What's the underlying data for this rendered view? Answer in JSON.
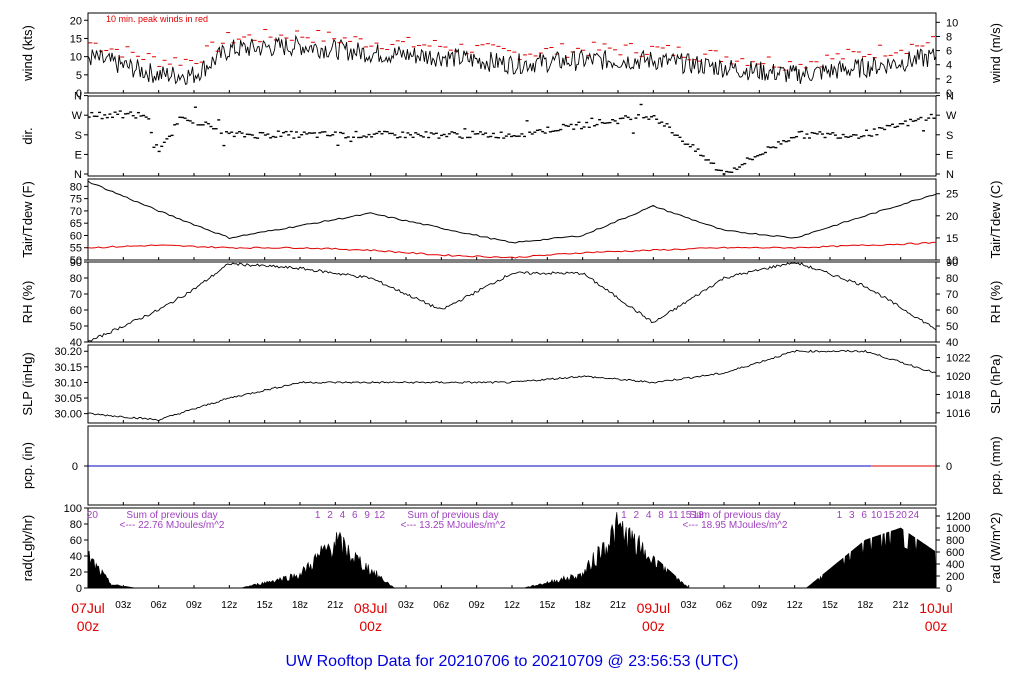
{
  "colors": {
    "axis": "#000000",
    "dew": "#e00000",
    "gust": "#e00000",
    "rain": "#0000c0",
    "rainRecent": "#e00000",
    "sum": "#a040c0",
    "title": "#0000dd",
    "date": "#e00000"
  },
  "title": "UW Rooftop Data for 20210706  to  20210709 @ 23:56:53  (UTC)",
  "time_axis": {
    "hour_labels": [
      "03z",
      "06z",
      "09z",
      "12z",
      "15z",
      "18z",
      "21z",
      "",
      "03z",
      "06z",
      "09z",
      "12z",
      "15z",
      "18z",
      "21z",
      "",
      "03z",
      "06z",
      "09z",
      "12z",
      "15z",
      "18z",
      "21z"
    ],
    "dates": [
      {
        "date": "07Jul",
        "hour": "00z"
      },
      {
        "date": "08Jul",
        "hour": "00z"
      },
      {
        "date": "09Jul",
        "hour": "00z"
      },
      {
        "date": "10Jul",
        "hour": "00z"
      }
    ]
  },
  "chart_data": [
    {
      "type": "line",
      "panel": "wind",
      "ylabel": "wind (kts)",
      "ylabel_right": "wind (m/s)",
      "ylim": [
        0,
        22
      ],
      "yticks": [
        0,
        5,
        10,
        15,
        20
      ],
      "yticks_right": [
        "0",
        "2",
        "4",
        "6",
        "8",
        "10"
      ],
      "annotation": "10 min. peak winds in red",
      "x_hours": [
        0,
        6,
        9,
        12,
        18,
        24,
        30,
        36,
        42,
        48,
        54,
        60,
        66,
        72
      ],
      "series": [
        {
          "values": [
            10,
            5,
            5,
            12,
            13,
            11,
            10,
            8,
            9,
            9,
            7,
            5,
            7,
            10
          ]
        },
        {
          "values": [
            14,
            9,
            9,
            15,
            16,
            14,
            13,
            11,
            12,
            12,
            10,
            8,
            11,
            14
          ]
        }
      ]
    },
    {
      "type": "scatter",
      "panel": "direction",
      "ylabel": "dir.",
      "yticks": [
        "N",
        "E",
        "S",
        "W",
        "N"
      ],
      "x_hours": [
        0,
        5,
        6,
        8,
        12,
        24,
        36,
        48,
        54,
        60,
        66,
        72
      ],
      "values": [
        "W",
        "W",
        "E",
        "W",
        "S",
        "S",
        "S",
        "W",
        "N",
        "S",
        "S",
        "W"
      ]
    },
    {
      "type": "line",
      "panel": "temperature",
      "ylabel": "Tair/Tdew (F)",
      "ylabel_right": "Tair/Tdew (C)",
      "ylim": [
        50,
        83
      ],
      "yticks": [
        50,
        55,
        60,
        65,
        70,
        75,
        80
      ],
      "yticks_right": [
        "10",
        "15",
        "20",
        "25"
      ],
      "x_hours": [
        0,
        6,
        12,
        18,
        24,
        30,
        36,
        42,
        48,
        54,
        60,
        66,
        72
      ],
      "series": [
        {
          "values": [
            82,
            70,
            59,
            64,
            69,
            63,
            57,
            60,
            72,
            62,
            59,
            68,
            77
          ]
        },
        {
          "values": [
            55,
            56,
            55,
            55,
            54,
            52,
            51,
            53,
            54,
            55,
            55,
            56,
            57
          ]
        }
      ]
    },
    {
      "type": "line",
      "panel": "humidity",
      "ylabel": "RH (%)",
      "ylabel_right": "RH (%)",
      "ylim": [
        40,
        90
      ],
      "yticks": [
        40,
        50,
        60,
        70,
        80,
        90
      ],
      "x_hours": [
        0,
        6,
        9,
        12,
        18,
        24,
        30,
        36,
        42,
        48,
        54,
        60,
        66,
        72
      ],
      "values": [
        40,
        60,
        73,
        89,
        86,
        80,
        60,
        83,
        83,
        52,
        80,
        90,
        75,
        48
      ]
    },
    {
      "type": "line",
      "panel": "pressure",
      "ylabel": "SLP (inHg)",
      "ylabel_right": "SLP (hPa)",
      "ylim": [
        29.97,
        30.22
      ],
      "yticks": [
        30.0,
        30.05,
        30.1,
        30.15,
        30.2
      ],
      "yticks_right": [
        "1016",
        "1018",
        "1020",
        "1022"
      ],
      "x_hours": [
        0,
        6,
        12,
        18,
        24,
        30,
        36,
        42,
        48,
        54,
        60,
        66,
        72
      ],
      "values": [
        30.0,
        29.98,
        30.05,
        30.1,
        30.1,
        30.1,
        30.1,
        30.12,
        30.1,
        30.13,
        30.2,
        30.2,
        30.13
      ]
    },
    {
      "type": "line",
      "panel": "precipitation",
      "ylabel": "pcp. (in)",
      "ylabel_right": "pcp. (mm)",
      "yticks": [
        0
      ],
      "yticks_right": [
        "0"
      ],
      "x_hours": [
        0,
        72
      ],
      "values": [
        0,
        0
      ]
    },
    {
      "type": "area",
      "panel": "radiation",
      "ylabel": "rad(Lgly/hr)",
      "ylabel_right": "rad (W/m^2)",
      "ylim": [
        0,
        100
      ],
      "yticks": [
        0,
        20,
        40,
        60,
        80,
        100
      ],
      "yticks_right": [
        "0",
        "200",
        "400",
        "600",
        "800",
        "1000",
        "1200"
      ],
      "x_hours": [
        0,
        2,
        4,
        13,
        18,
        21,
        23,
        26,
        30,
        37,
        42,
        45,
        48,
        51,
        54,
        61,
        66,
        69,
        72
      ],
      "values": [
        45,
        5,
        0,
        0,
        20,
        70,
        40,
        0,
        0,
        0,
        20,
        90,
        40,
        0,
        0,
        0,
        60,
        75,
        45
      ],
      "daily_sums": [
        {
          "label": "Sum of previous day",
          "value": "<--- 22.76 MJoules/m^2"
        },
        {
          "label": "Sum of previous day",
          "value": "<--- 13.25 MJoules/m^2"
        },
        {
          "label": "Sum of previous day",
          "value": "<--- 18.95 MJoules/m^2"
        }
      ],
      "hour_markers": [
        {
          "hours": [
            "20"
          ]
        },
        {
          "hours": [
            "1",
            "2",
            "4",
            "6",
            "9",
            "12"
          ]
        },
        {
          "hours": [
            "1",
            "2",
            "4",
            "8",
            "11",
            "15",
            "18"
          ]
        },
        {
          "hours": [
            "1",
            "3",
            "6",
            "10",
            "15",
            "20",
            "24"
          ]
        }
      ]
    }
  ]
}
